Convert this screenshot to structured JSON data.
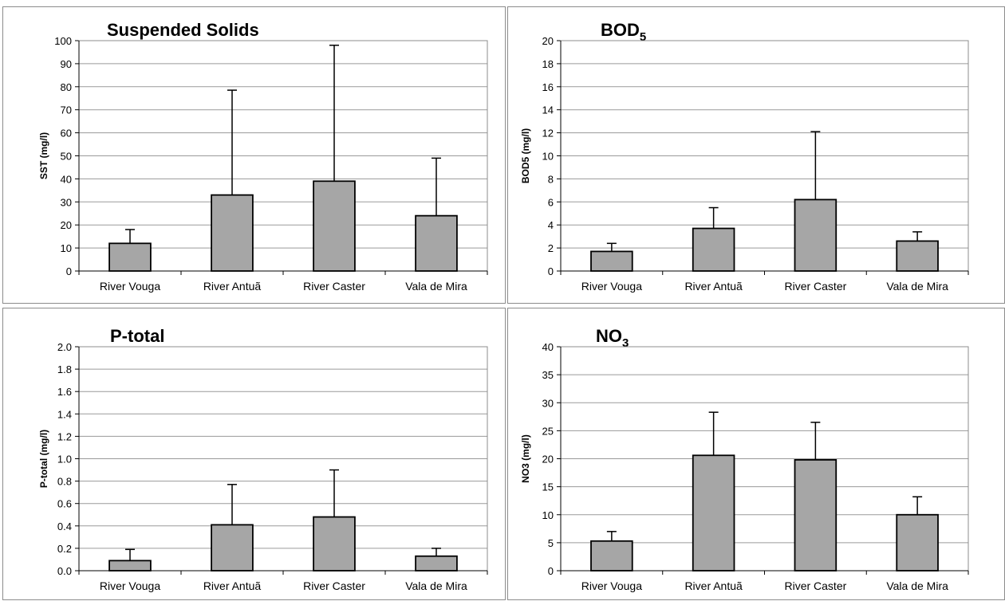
{
  "chart_data": [
    {
      "type": "bar",
      "title": "Suspended Solids",
      "title_sub": "",
      "ylabel": "SST (mg/l)",
      "categories": [
        "River Vouga",
        "River Antuã",
        "River Caster",
        "Vala de Mira"
      ],
      "values": [
        12,
        33,
        39,
        24
      ],
      "error_upper": [
        18,
        78.5,
        98,
        49
      ],
      "ylim": [
        0,
        100
      ],
      "yticks": [
        "0",
        "10",
        "20",
        "30",
        "40",
        "50",
        "60",
        "70",
        "80",
        "90",
        "100"
      ],
      "grid": true,
      "bar_color": "#a6a6a6"
    },
    {
      "type": "bar",
      "title": "BOD",
      "title_sub": "5",
      "ylabel": "BOD5 (mg/l)",
      "categories": [
        "River Vouga",
        "River Antuã",
        "River Caster",
        "Vala de Mira"
      ],
      "values": [
        1.7,
        3.7,
        6.2,
        2.6
      ],
      "error_upper": [
        2.4,
        5.5,
        12.1,
        3.4
      ],
      "ylim": [
        0,
        20
      ],
      "yticks": [
        "0",
        "2",
        "4",
        "6",
        "8",
        "10",
        "12",
        "14",
        "16",
        "18",
        "20"
      ],
      "grid": true,
      "bar_color": "#a6a6a6"
    },
    {
      "type": "bar",
      "title": "P-total",
      "title_sub": "",
      "ylabel": "P-total (mg/l)",
      "categories": [
        "River Vouga",
        "River Antuã",
        "River Caster",
        "Vala de Mira"
      ],
      "values": [
        0.09,
        0.41,
        0.48,
        0.13
      ],
      "error_upper": [
        0.19,
        0.77,
        0.9,
        0.2
      ],
      "ylim": [
        0,
        2
      ],
      "yticks": [
        "0.0",
        "0.2",
        "0.4",
        "0.6",
        "0.8",
        "1.0",
        "1.2",
        "1.4",
        "1.6",
        "1.8",
        "2.0"
      ],
      "grid": true,
      "bar_color": "#a6a6a6"
    },
    {
      "type": "bar",
      "title": "NO",
      "title_sub": "3",
      "ylabel": "NO3 (mg/l)",
      "categories": [
        "River Vouga",
        "River Antuã",
        "River Caster",
        "Vala de Mira"
      ],
      "values": [
        5.3,
        20.6,
        19.8,
        10
      ],
      "error_upper": [
        7,
        28.3,
        26.5,
        13.2
      ],
      "ylim": [
        0,
        40
      ],
      "yticks": [
        "0",
        "5",
        "10",
        "15",
        "20",
        "25",
        "30",
        "35",
        "40"
      ],
      "grid": true,
      "bar_color": "#a6a6a6"
    }
  ]
}
